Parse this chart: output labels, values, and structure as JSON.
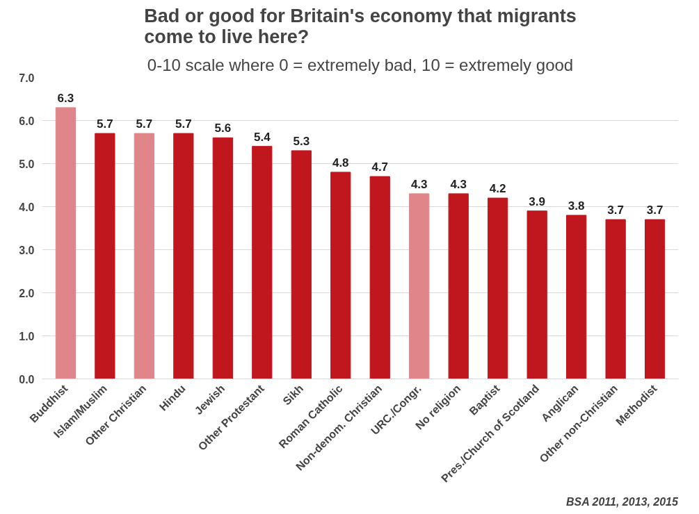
{
  "chart_data": {
    "type": "bar",
    "title": "Bad or good for Britain's economy that migrants come to live here?",
    "subtitle": "0-10 scale where 0 = extremely bad, 10 = extremely good",
    "categories": [
      "Buddhist",
      "Islam/Muslim",
      "Other Christian",
      "Hindu",
      "Jewish",
      "Other Protestant",
      "Sikh",
      "Roman Catholic",
      "Non-denom. Christian",
      "URC./Congr.",
      "No religion",
      "Baptist",
      "Pres./Church of Scotland",
      "Anglican",
      "Other non-Christian",
      "Methodist"
    ],
    "values": [
      6.3,
      5.7,
      5.7,
      5.7,
      5.6,
      5.4,
      5.3,
      4.8,
      4.7,
      4.3,
      4.3,
      4.2,
      3.9,
      3.8,
      3.7,
      3.7
    ],
    "colors": [
      "#e0868b",
      "#c0161d",
      "#e0868b",
      "#c0161d",
      "#c0161d",
      "#c0161d",
      "#c0161d",
      "#c0161d",
      "#c0161d",
      "#e0868b",
      "#c0161d",
      "#c0161d",
      "#c0161d",
      "#c0161d",
      "#c0161d",
      "#c0161d"
    ],
    "ylim": [
      0,
      7
    ],
    "yticks": [
      {
        "value": 0,
        "label": "0.0"
      },
      {
        "value": 1,
        "label": "1.0"
      },
      {
        "value": 2,
        "label": "2.0"
      },
      {
        "value": 3,
        "label": "3.0"
      },
      {
        "value": 4,
        "label": "4.0"
      },
      {
        "value": 5,
        "label": "5.0"
      },
      {
        "value": 6,
        "label": "6.0"
      },
      {
        "value": 7,
        "label": "7.0"
      }
    ],
    "grid": "y",
    "data_labels": true,
    "annotations": [
      "BSA 2011, 2013, 2015"
    ]
  }
}
